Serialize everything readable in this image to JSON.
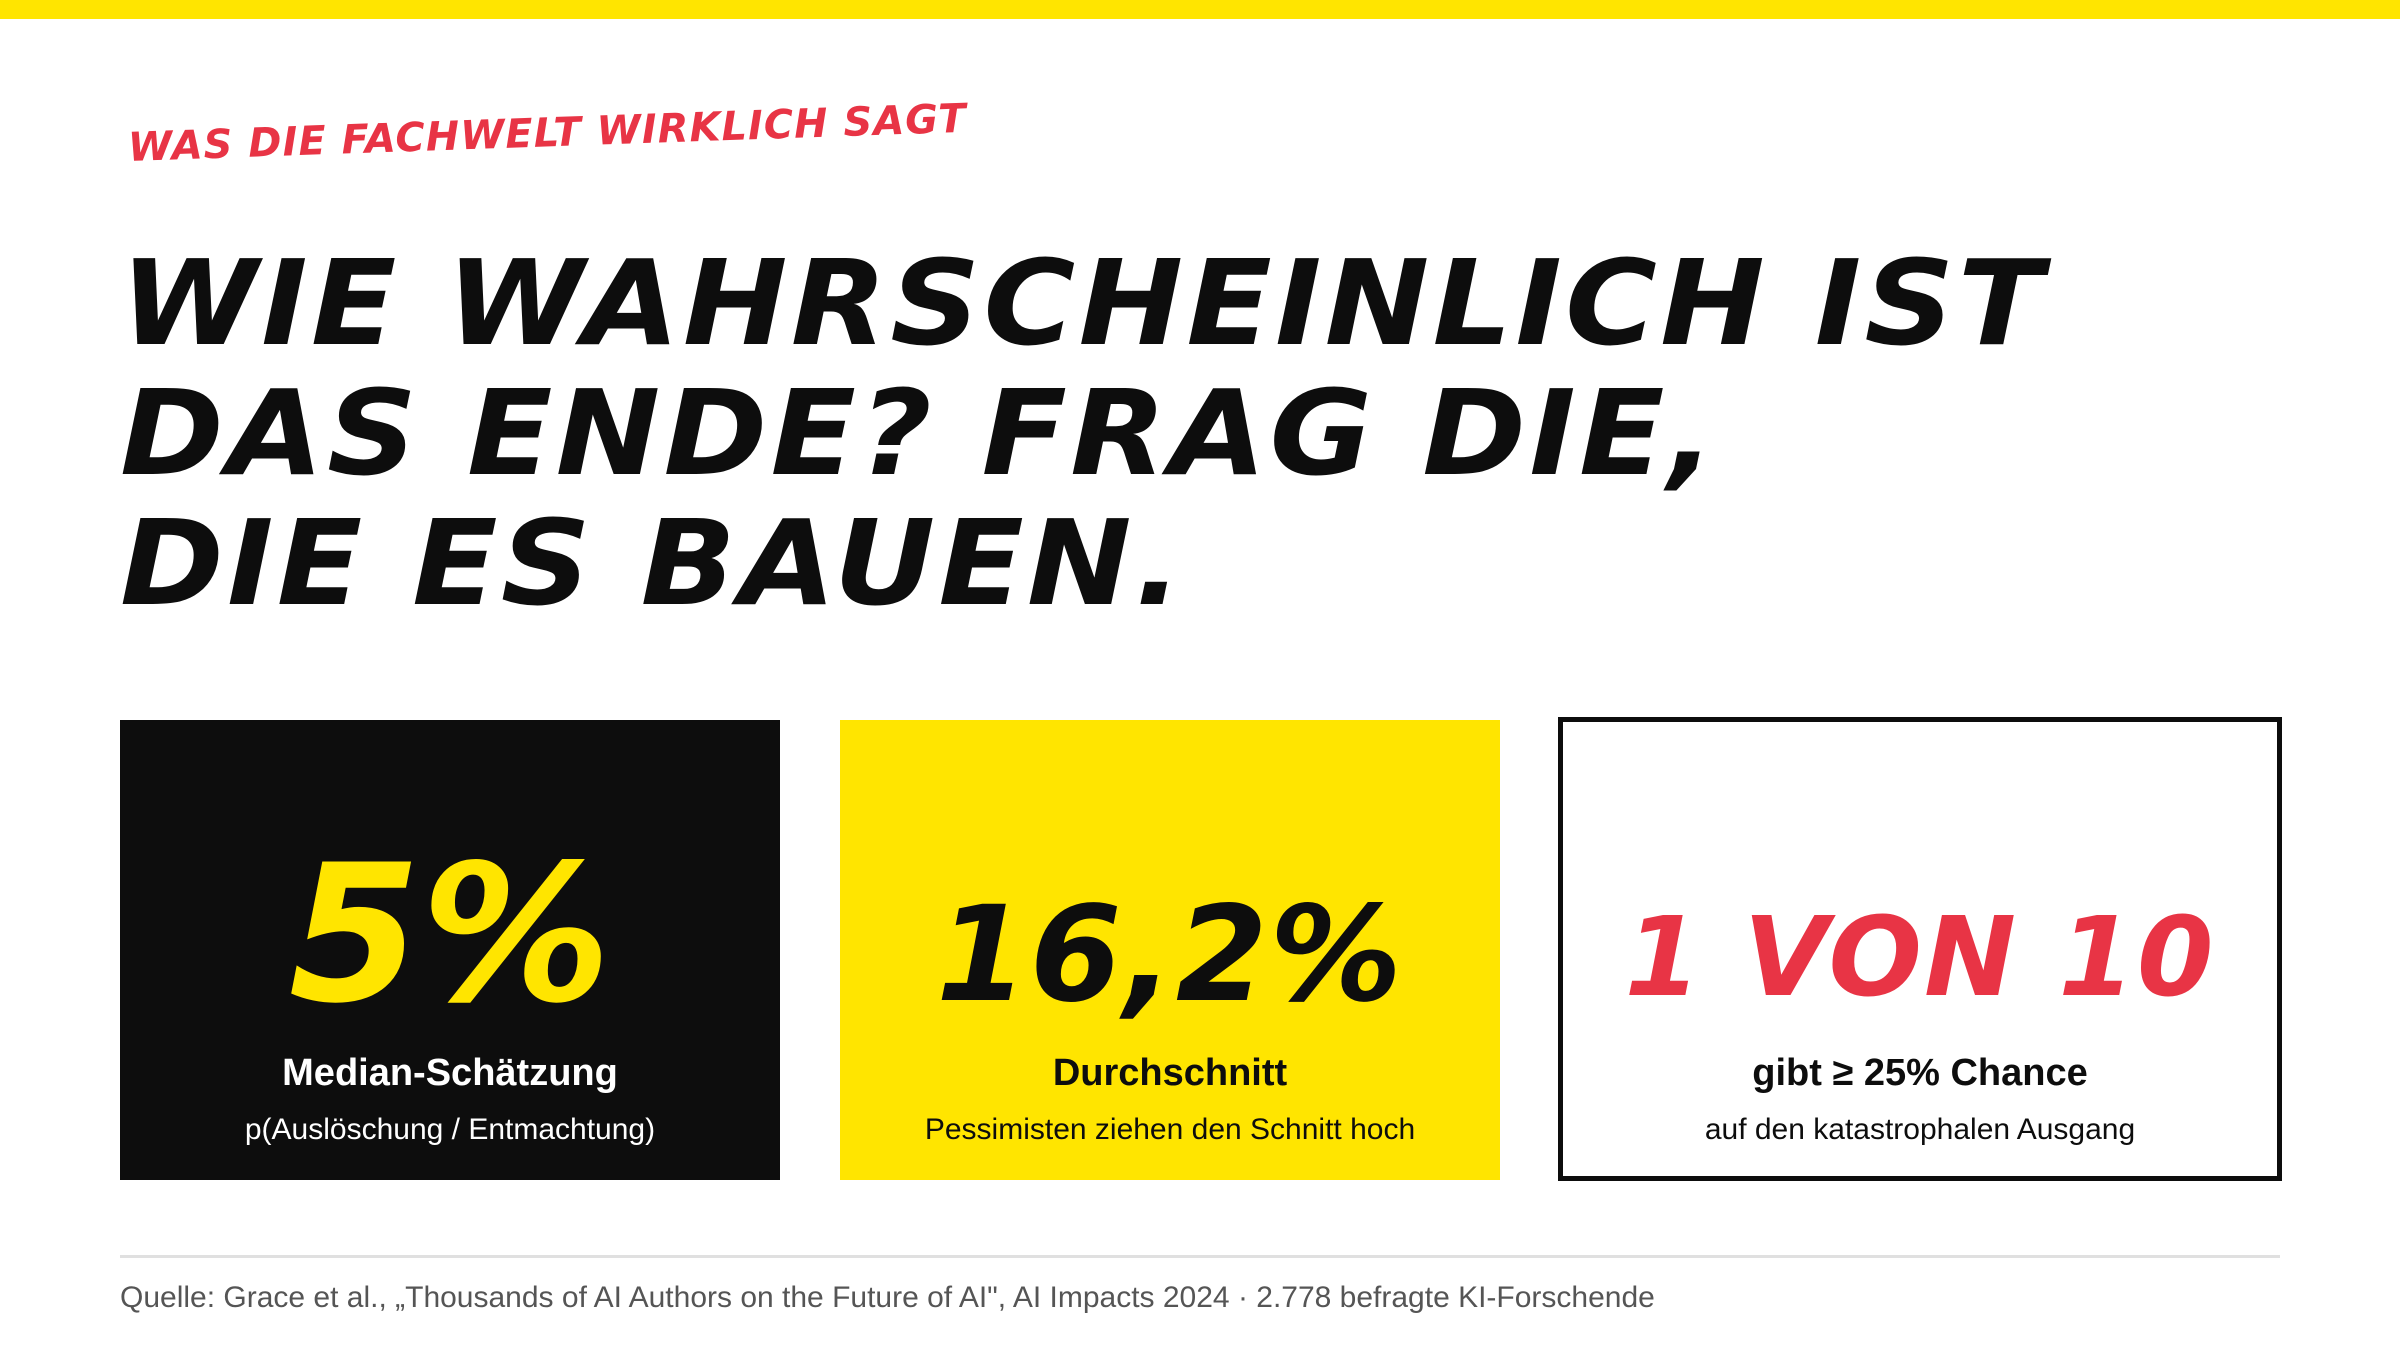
{
  "kicker": "Was die Fachwelt wirklich sagt",
  "headline": {
    "line1": "WIE WAHRSCHEINLICH IST",
    "line2": "DAS ENDE? FRAG DIE,",
    "line3": "DIE ES BAUEN."
  },
  "cards": [
    {
      "value": "5%",
      "label": "Median-Schätzung",
      "sub": "p(Auslöschung / Entmachtung)"
    },
    {
      "value": "16,2%",
      "label": "Durchschnitt",
      "sub": "Pessimisten ziehen den Schnitt hoch"
    },
    {
      "value": "1 VON 10",
      "label": "gibt ≥ 25% Chance",
      "sub": "auf den katastrophalen Ausgang"
    }
  ],
  "source": "Quelle: Grace et al., „Thousands of AI Authors on the Future of AI\", AI Impacts 2024 · 2.778 befragte KI-Forschende",
  "colors": {
    "accent_yellow": "#FFE500",
    "accent_red": "#E83445",
    "ink": "#0d0d0d"
  }
}
